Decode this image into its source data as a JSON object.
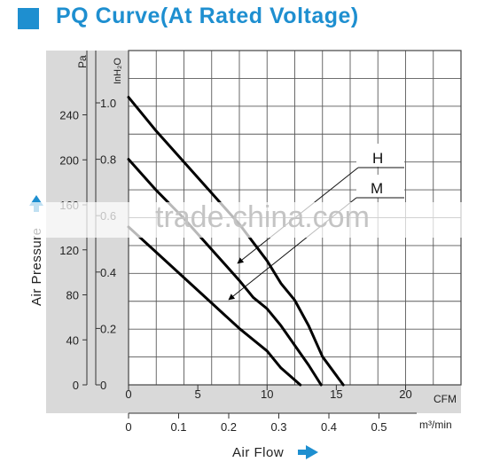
{
  "header": {
    "title": "PQ Curve(At Rated Voltage)"
  },
  "colors": {
    "accent": "#1e8fd0",
    "panel": "#d9d9d9",
    "curve": "#000000"
  },
  "watermark": "trade.china.com",
  "chart_data": {
    "type": "line",
    "title": "PQ Curve(At Rated Voltage)",
    "xlabel": "Air Flow",
    "ylabel": "Air Pressure",
    "x_unit_primary": "CFM",
    "x_unit_secondary": "m³/min",
    "y_unit_primary": "Pa",
    "y_unit_secondary": "InH₂O",
    "x_ticks_cfm": [
      "0",
      "5",
      "10",
      "15",
      "20"
    ],
    "x_ticks_m3": [
      "0",
      "0.1",
      "0.2",
      "0.3",
      "0.4",
      "0.5"
    ],
    "y_ticks_pa": [
      "0",
      "40",
      "80",
      "120",
      "160",
      "200",
      "240"
    ],
    "y_ticks_inh2o": [
      "0",
      "0.2",
      "0.4",
      "0.6",
      "0.8",
      "1.0"
    ],
    "xlim": [
      0,
      24
    ],
    "ylim_inh2o": [
      0,
      1.0
    ],
    "grid": true,
    "series": [
      {
        "name": "H",
        "x": [
          0,
          2,
          4,
          6,
          8,
          10,
          11,
          12,
          13,
          14,
          15.5
        ],
        "y": [
          1.02,
          0.9,
          0.79,
          0.68,
          0.57,
          0.44,
          0.36,
          0.3,
          0.21,
          0.1,
          0.0
        ]
      },
      {
        "name": "M",
        "x": [
          0,
          2,
          4,
          6,
          8,
          9,
          10,
          11,
          12,
          13,
          13.9
        ],
        "y": [
          0.8,
          0.69,
          0.59,
          0.48,
          0.37,
          0.31,
          0.27,
          0.21,
          0.14,
          0.07,
          0.0
        ]
      },
      {
        "name": "",
        "x": [
          0,
          2,
          4,
          6,
          8,
          10,
          11,
          12.4
        ],
        "y": [
          0.56,
          0.47,
          0.38,
          0.29,
          0.2,
          0.12,
          0.06,
          0.0
        ]
      }
    ],
    "legend": [
      "H",
      "M"
    ]
  }
}
